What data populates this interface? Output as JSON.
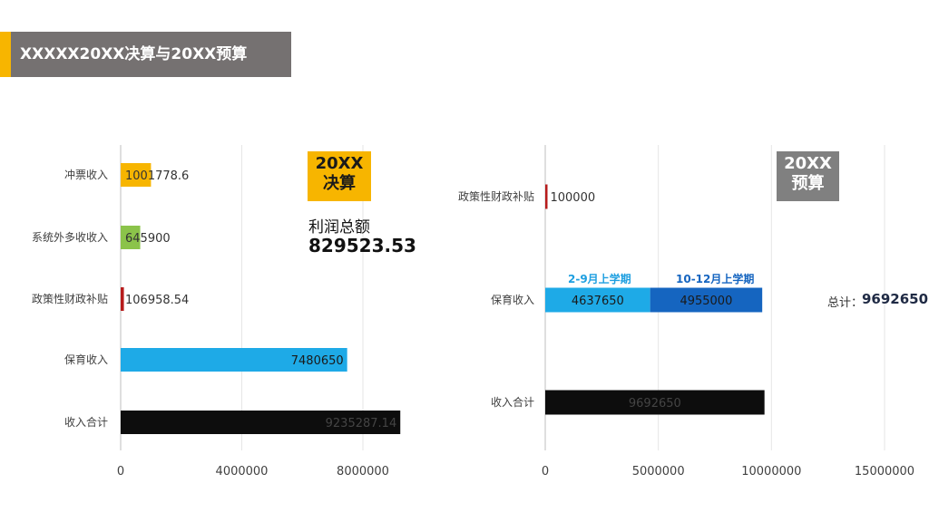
{
  "title": "XXXXX20XX决算与20XX预算",
  "left_badge": {
    "line1": "20XX",
    "line2": "决算"
  },
  "right_badge": {
    "line1": "20XX",
    "line2": "预算"
  },
  "profit": {
    "label": "利润总额",
    "value": "829523.53"
  },
  "legend": {
    "a": "2-9月上学期",
    "b": "10-12月上学期"
  },
  "total": {
    "label": "总计：",
    "value": "9692650"
  },
  "colors": {
    "title_bg": "#757171",
    "accent": "#F7B500",
    "yellow": "#F7B500",
    "green": "#8BC34A",
    "red": "#B71C1C",
    "cyan": "#1EAAE7",
    "blue": "#1565C0",
    "black": "#0d0d0d",
    "gray_badge": "#808080"
  },
  "chart_data": [
    {
      "type": "bar",
      "orientation": "horizontal",
      "categories": [
        "冲票收入",
        "系统外多收收入",
        "政策性财政补贴",
        "保育收入",
        "收入合计"
      ],
      "values": [
        1001778.6,
        645900,
        106958.54,
        7480650,
        9235287.14
      ],
      "value_labels": [
        "1001778.6",
        "645900",
        "106958.54",
        "7480650",
        "9235287.14"
      ],
      "bar_colors": [
        "#F7B500",
        "#8BC34A",
        "#B71C1C",
        "#1EAAE7",
        "#0d0d0d"
      ],
      "xlim": [
        0,
        10000000
      ],
      "ticks": [
        0,
        4000000,
        8000000
      ],
      "tick_labels": [
        "0",
        "4000000",
        "8000000"
      ],
      "grid": true
    },
    {
      "type": "bar",
      "orientation": "horizontal",
      "stacked": true,
      "categories": [
        "政策性财政补贴",
        "保育收入",
        "收入合计"
      ],
      "series": [
        {
          "name": "2-9月上学期",
          "values": [
            100000,
            4637650,
            9692650
          ],
          "labels": [
            "100000",
            "4637650",
            "9692650"
          ],
          "colors": [
            "#B71C1C",
            "#1EAAE7",
            "#0d0d0d"
          ]
        },
        {
          "name": "10-12月上学期",
          "values": [
            0,
            4955000,
            0
          ],
          "labels": [
            "",
            "4955000",
            ""
          ],
          "colors": [
            "#1565C0",
            "#1565C0",
            "#1565C0"
          ]
        }
      ],
      "xlim": [
        0,
        15000000
      ],
      "ticks": [
        0,
        5000000,
        10000000,
        15000000
      ],
      "tick_labels": [
        "0",
        "5000000",
        "10000000",
        "15000000"
      ],
      "grid": true
    }
  ]
}
